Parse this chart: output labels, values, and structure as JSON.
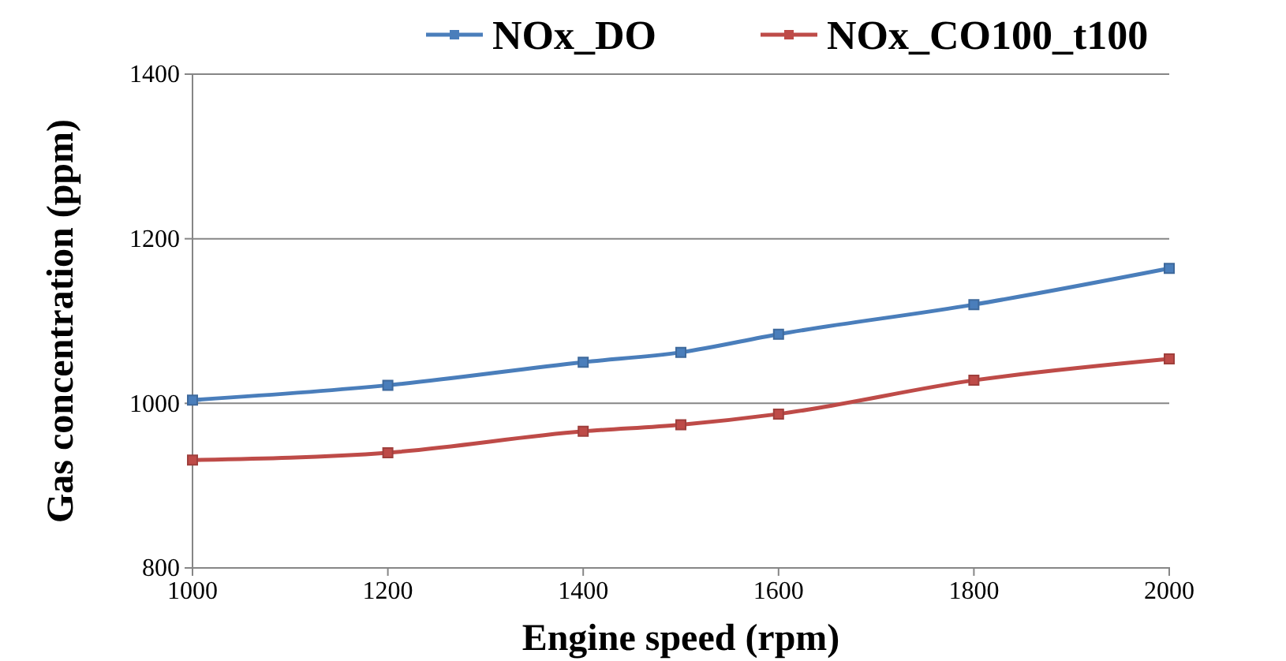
{
  "chart_data": {
    "type": "line",
    "xlabel": "Engine speed (rpm)",
    "ylabel": "Gas concentration (ppm)",
    "x": [
      1000,
      1200,
      1400,
      1500,
      1600,
      1800,
      2000
    ],
    "series": [
      {
        "name": "NOx_DO",
        "color": "#4a7ebb",
        "values": [
          1004,
          1022,
          1050,
          1062,
          1084,
          1120,
          1164
        ]
      },
      {
        "name": "NOx_CO100_t100",
        "color": "#be4b48",
        "values": [
          931,
          940,
          966,
          974,
          987,
          1028,
          1054
        ]
      }
    ],
    "xlim": [
      1000,
      2000
    ],
    "xticks": [
      1000,
      1200,
      1400,
      1600,
      1800,
      2000
    ],
    "ylim": [
      800,
      1400
    ],
    "yticks": [
      800,
      1000,
      1200,
      1400
    ],
    "grid": "y",
    "legend": "top right",
    "marker": "square",
    "line_style": "solid"
  }
}
